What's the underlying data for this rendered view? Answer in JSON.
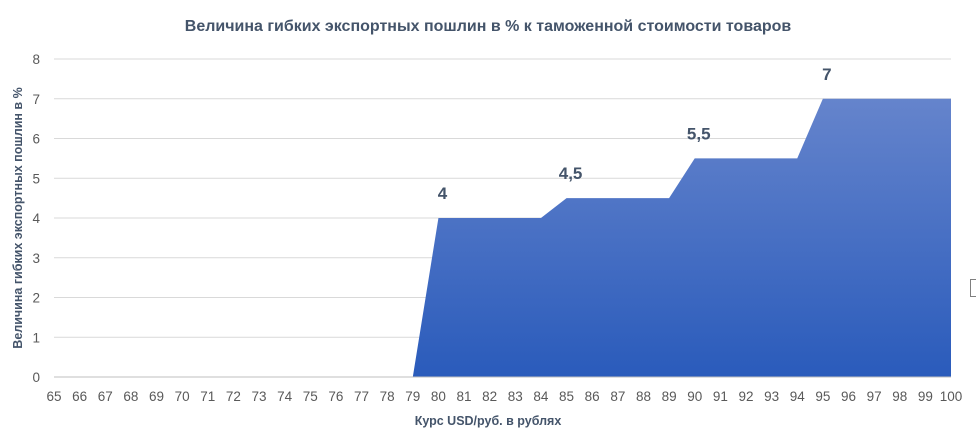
{
  "chart_data": {
    "type": "area",
    "title": "Величина гибких экспортных пошлин в % к таможенной стоимости товаров",
    "xlabel": "Курс USD/руб. в рублях",
    "ylabel": "Величина гибких экспортных пошлин в %",
    "categories": [
      "65",
      "66",
      "67",
      "68",
      "69",
      "70",
      "71",
      "72",
      "73",
      "74",
      "75",
      "76",
      "77",
      "78",
      "79",
      "80",
      "81",
      "82",
      "83",
      "84",
      "85",
      "86",
      "87",
      "88",
      "89",
      "90",
      "91",
      "92",
      "93",
      "94",
      "95",
      "96",
      "97",
      "98",
      "99",
      "100"
    ],
    "values": [
      0,
      0,
      0,
      0,
      0,
      0,
      0,
      0,
      0,
      0,
      0,
      0,
      0,
      0,
      0,
      4,
      4,
      4,
      4,
      4,
      4.5,
      4.5,
      4.5,
      4.5,
      4.5,
      5.5,
      5.5,
      5.5,
      5.5,
      5.5,
      7,
      7,
      7,
      7,
      7,
      7
    ],
    "yticks": [
      "0",
      "1",
      "2",
      "3",
      "4",
      "5",
      "6",
      "7",
      "8"
    ],
    "ylim": [
      0,
      8
    ],
    "grid": true,
    "legend": "none",
    "data_labels": [
      {
        "category": "80",
        "value": 4,
        "text": "4"
      },
      {
        "category": "85",
        "value": 4.5,
        "text": "4,5"
      },
      {
        "category": "90",
        "value": 5.5,
        "text": "5,5"
      },
      {
        "category": "95",
        "value": 7,
        "text": "7"
      }
    ],
    "colors": {
      "fill_top": "#6584cc",
      "fill_bottom": "#2a5bbb",
      "grid": "#d9d9d9",
      "text": "#44546a",
      "tick": "#595959"
    }
  }
}
